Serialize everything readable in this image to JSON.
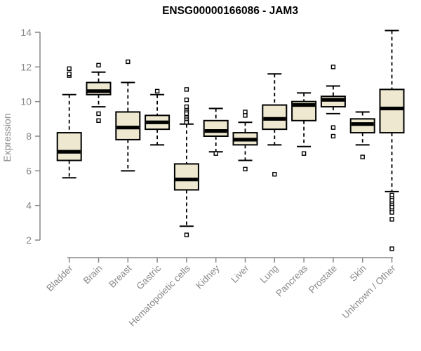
{
  "chart_data": {
    "type": "box",
    "title": "ENSG00000166086 - JAM3",
    "ylabel": "Expression",
    "xlabel": "",
    "yticks": [
      2,
      4,
      6,
      8,
      10,
      12,
      14
    ],
    "ylim": [
      1.3,
      14.2
    ],
    "grid": false,
    "legend": false,
    "categories": [
      "Bladder",
      "Brain",
      "Breast",
      "Gastric",
      "Hematopoietic cells",
      "Kidney",
      "Liver",
      "Lung",
      "Pancreas",
      "Prostate",
      "Skin",
      "Unknown / Other"
    ],
    "series": [
      {
        "category": "Bladder",
        "low": 5.6,
        "q1": 6.6,
        "median": 7.1,
        "q3": 8.2,
        "high": 10.4,
        "outliers": [
          11.5,
          11.6,
          11.9
        ]
      },
      {
        "category": "Brain",
        "low": 9.7,
        "q1": 10.4,
        "median": 10.6,
        "q3": 11.1,
        "high": 11.7,
        "outliers": [
          12.1,
          9.3,
          8.9
        ]
      },
      {
        "category": "Breast",
        "low": 6.0,
        "q1": 7.8,
        "median": 8.5,
        "q3": 9.4,
        "high": 11.1,
        "outliers": [
          12.3
        ]
      },
      {
        "category": "Gastric",
        "low": 7.5,
        "q1": 8.4,
        "median": 8.8,
        "q3": 9.2,
        "high": 10.4,
        "outliers": [
          10.6
        ]
      },
      {
        "category": "Hematopoietic cells",
        "low": 2.8,
        "q1": 4.9,
        "median": 5.5,
        "q3": 6.4,
        "high": 8.7,
        "outliers": [
          10.7,
          10.1,
          9.7,
          9.5,
          9.4,
          9.3,
          9.1,
          9.0,
          8.9,
          8.8,
          2.3
        ]
      },
      {
        "category": "Kidney",
        "low": 7.1,
        "q1": 8.0,
        "median": 8.3,
        "q3": 8.9,
        "high": 9.6,
        "outliers": [
          7.0
        ]
      },
      {
        "category": "Liver",
        "low": 6.6,
        "q1": 7.5,
        "median": 7.8,
        "q3": 8.2,
        "high": 8.8,
        "outliers": [
          9.4,
          9.2,
          6.1
        ]
      },
      {
        "category": "Lung",
        "low": 7.5,
        "q1": 8.4,
        "median": 9.0,
        "q3": 9.8,
        "high": 11.6,
        "outliers": [
          5.8
        ]
      },
      {
        "category": "Pancreas",
        "low": 7.4,
        "q1": 8.9,
        "median": 9.8,
        "q3": 10.0,
        "high": 10.5,
        "outliers": [
          7.0
        ]
      },
      {
        "category": "Prostate",
        "low": 9.3,
        "q1": 9.7,
        "median": 10.1,
        "q3": 10.3,
        "high": 10.9,
        "outliers": [
          12.0,
          8.5,
          8.0
        ]
      },
      {
        "category": "Skin",
        "low": 7.5,
        "q1": 8.2,
        "median": 8.7,
        "q3": 9.0,
        "high": 9.4,
        "outliers": [
          6.8
        ]
      },
      {
        "category": "Unknown / Other",
        "low": 4.8,
        "q1": 8.2,
        "median": 9.6,
        "q3": 10.7,
        "high": 14.1,
        "outliers": [
          4.6,
          4.4,
          4.3,
          4.1,
          4.0,
          3.9,
          3.7,
          3.6,
          3.2,
          1.5
        ]
      }
    ],
    "colors": {
      "box_fill": "#EDE8CF",
      "line": "#000000",
      "axis": "#878787",
      "label": "#8a8a8a",
      "title": "#000000",
      "background": "#ffffff"
    }
  }
}
